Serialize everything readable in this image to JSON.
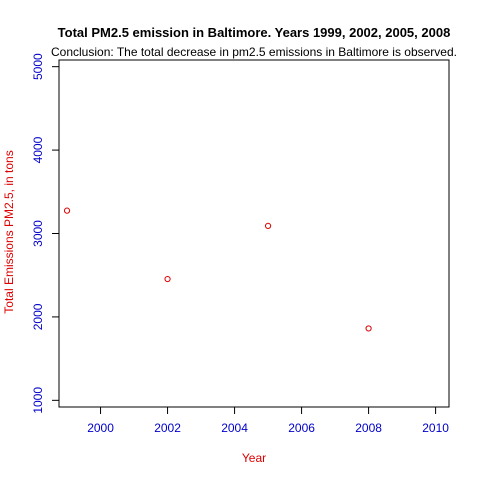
{
  "chart_data": {
    "type": "scatter",
    "title": "Total PM2.5 emission in Baltimore. Years 1999, 2002, 2005, 2008",
    "subtitle": "Conclusion: The total decrease in pm2.5 emissions in Baltimore is observed.",
    "xlabel": "Year",
    "ylabel": "Total Emissions PM2.5, in tons",
    "xlim": [
      1998.76,
      2010.4
    ],
    "ylim": [
      920,
      5080
    ],
    "xticks": [
      2000,
      2002,
      2004,
      2006,
      2008,
      2010
    ],
    "yticks": [
      1000,
      2000,
      3000,
      4000,
      5000
    ],
    "points": [
      {
        "x": 1999,
        "y": 3274
      },
      {
        "x": 2002,
        "y": 2454
      },
      {
        "x": 2005,
        "y": 3091
      },
      {
        "x": 2008,
        "y": 1862
      }
    ],
    "grid": false,
    "colors": {
      "points": "#dd0000",
      "axis_labels": "#dd0000",
      "tick_labels": "#0000cc",
      "frame": "#000000"
    }
  }
}
